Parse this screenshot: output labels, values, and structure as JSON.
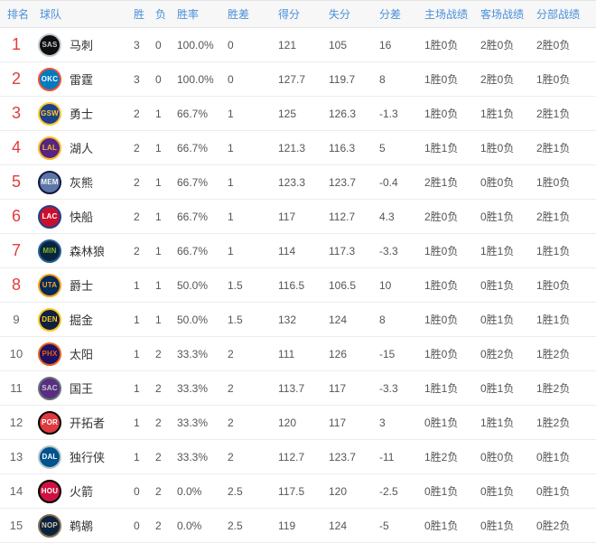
{
  "accent": {
    "header_text": "#4a90d9",
    "rank_top_color": "#e23c3c",
    "rank_rest_color": "#666666",
    "header_bg": "#f7f7f7",
    "row_border": "#ececec",
    "rank_highlight_threshold": 8
  },
  "table": {
    "headers": [
      "排名",
      "球队",
      "胜",
      "负",
      "胜率",
      "胜差",
      "得分",
      "失分",
      "分差",
      "主场战绩",
      "客场战绩",
      "分部战绩"
    ],
    "rows": [
      {
        "rank": "1",
        "team": "马刺",
        "abbr": "SAS",
        "logo_bg": "#0f0f0f",
        "logo_ring": "#c4ced4",
        "logo_fg": "#c4ced4",
        "wins": "3",
        "losses": "0",
        "pct": "100.0%",
        "gb": "0",
        "pf": "121",
        "pa": "105",
        "diff": "16",
        "home": "1胜0负",
        "away": "2胜0负",
        "division": "2胜0负"
      },
      {
        "rank": "2",
        "team": "雷霆",
        "abbr": "OKC",
        "logo_bg": "#007ac1",
        "logo_ring": "#f05133",
        "logo_fg": "#ffffff",
        "wins": "3",
        "losses": "0",
        "pct": "100.0%",
        "gb": "0",
        "pf": "127.7",
        "pa": "119.7",
        "diff": "8",
        "home": "1胜0负",
        "away": "2胜0负",
        "division": "1胜0负"
      },
      {
        "rank": "3",
        "team": "勇士",
        "abbr": "GSW",
        "logo_bg": "#1d428a",
        "logo_ring": "#ffc72c",
        "logo_fg": "#ffc72c",
        "wins": "2",
        "losses": "1",
        "pct": "66.7%",
        "gb": "1",
        "pf": "125",
        "pa": "126.3",
        "diff": "-1.3",
        "home": "1胜0负",
        "away": "1胜1负",
        "division": "2胜1负"
      },
      {
        "rank": "4",
        "team": "湖人",
        "abbr": "LAL",
        "logo_bg": "#552583",
        "logo_ring": "#fdb927",
        "logo_fg": "#fdb927",
        "wins": "2",
        "losses": "1",
        "pct": "66.7%",
        "gb": "1",
        "pf": "121.3",
        "pa": "116.3",
        "diff": "5",
        "home": "1胜1负",
        "away": "1胜0负",
        "division": "2胜1负"
      },
      {
        "rank": "5",
        "team": "灰熊",
        "abbr": "MEM",
        "logo_bg": "#5d76a9",
        "logo_ring": "#12173f",
        "logo_fg": "#f5f5f5",
        "wins": "2",
        "losses": "1",
        "pct": "66.7%",
        "gb": "1",
        "pf": "123.3",
        "pa": "123.7",
        "diff": "-0.4",
        "home": "2胜1负",
        "away": "0胜0负",
        "division": "1胜0负"
      },
      {
        "rank": "6",
        "team": "快船",
        "abbr": "LAC",
        "logo_bg": "#c8102e",
        "logo_ring": "#1d428a",
        "logo_fg": "#ffffff",
        "wins": "2",
        "losses": "1",
        "pct": "66.7%",
        "gb": "1",
        "pf": "117",
        "pa": "112.7",
        "diff": "4.3",
        "home": "2胜0负",
        "away": "0胜1负",
        "division": "2胜1负"
      },
      {
        "rank": "7",
        "team": "森林狼",
        "abbr": "MIN",
        "logo_bg": "#0c2340",
        "logo_ring": "#236192",
        "logo_fg": "#78be20",
        "wins": "2",
        "losses": "1",
        "pct": "66.7%",
        "gb": "1",
        "pf": "114",
        "pa": "117.3",
        "diff": "-3.3",
        "home": "1胜0负",
        "away": "1胜1负",
        "division": "1胜1负"
      },
      {
        "rank": "8",
        "team": "爵士",
        "abbr": "UTA",
        "logo_bg": "#002b5c",
        "logo_ring": "#f9a01b",
        "logo_fg": "#f9a01b",
        "wins": "1",
        "losses": "1",
        "pct": "50.0%",
        "gb": "1.5",
        "pf": "116.5",
        "pa": "106.5",
        "diff": "10",
        "home": "1胜0负",
        "away": "0胜1负",
        "division": "1胜0负"
      },
      {
        "rank": "9",
        "team": "掘金",
        "abbr": "DEN",
        "logo_bg": "#0e2240",
        "logo_ring": "#fec524",
        "logo_fg": "#fec524",
        "wins": "1",
        "losses": "1",
        "pct": "50.0%",
        "gb": "1.5",
        "pf": "132",
        "pa": "124",
        "diff": "8",
        "home": "1胜0负",
        "away": "0胜1负",
        "division": "1胜1负"
      },
      {
        "rank": "10",
        "team": "太阳",
        "abbr": "PHX",
        "logo_bg": "#1d1160",
        "logo_ring": "#e56020",
        "logo_fg": "#e56020",
        "wins": "1",
        "losses": "2",
        "pct": "33.3%",
        "gb": "2",
        "pf": "111",
        "pa": "126",
        "diff": "-15",
        "home": "1胜0负",
        "away": "0胜2负",
        "division": "1胜2负"
      },
      {
        "rank": "11",
        "team": "国王",
        "abbr": "SAC",
        "logo_bg": "#5a2d81",
        "logo_ring": "#63727a",
        "logo_fg": "#c4ced4",
        "wins": "1",
        "losses": "2",
        "pct": "33.3%",
        "gb": "2",
        "pf": "113.7",
        "pa": "117",
        "diff": "-3.3",
        "home": "1胜1负",
        "away": "0胜1负",
        "division": "1胜2负"
      },
      {
        "rank": "12",
        "team": "开拓者",
        "abbr": "POR",
        "logo_bg": "#e03a3e",
        "logo_ring": "#000000",
        "logo_fg": "#ffffff",
        "wins": "1",
        "losses": "2",
        "pct": "33.3%",
        "gb": "2",
        "pf": "120",
        "pa": "117",
        "diff": "3",
        "home": "0胜1负",
        "away": "1胜1负",
        "division": "1胜2负"
      },
      {
        "rank": "13",
        "team": "独行侠",
        "abbr": "DAL",
        "logo_bg": "#00538c",
        "logo_ring": "#b8c4ca",
        "logo_fg": "#ffffff",
        "wins": "1",
        "losses": "2",
        "pct": "33.3%",
        "gb": "2",
        "pf": "112.7",
        "pa": "123.7",
        "diff": "-11",
        "home": "1胜2负",
        "away": "0胜0负",
        "division": "0胜1负"
      },
      {
        "rank": "14",
        "team": "火箭",
        "abbr": "HOU",
        "logo_bg": "#ce1141",
        "logo_ring": "#000000",
        "logo_fg": "#ffffff",
        "wins": "0",
        "losses": "2",
        "pct": "0.0%",
        "gb": "2.5",
        "pf": "117.5",
        "pa": "120",
        "diff": "-2.5",
        "home": "0胜1负",
        "away": "0胜1负",
        "division": "0胜1负"
      },
      {
        "rank": "15",
        "team": "鹈鹕",
        "abbr": "NOP",
        "logo_bg": "#0c2340",
        "logo_ring": "#85714d",
        "logo_fg": "#d4c9a8",
        "wins": "0",
        "losses": "2",
        "pct": "0.0%",
        "gb": "2.5",
        "pf": "119",
        "pa": "124",
        "diff": "-5",
        "home": "0胜1负",
        "away": "0胜1负",
        "division": "0胜2负"
      }
    ]
  }
}
